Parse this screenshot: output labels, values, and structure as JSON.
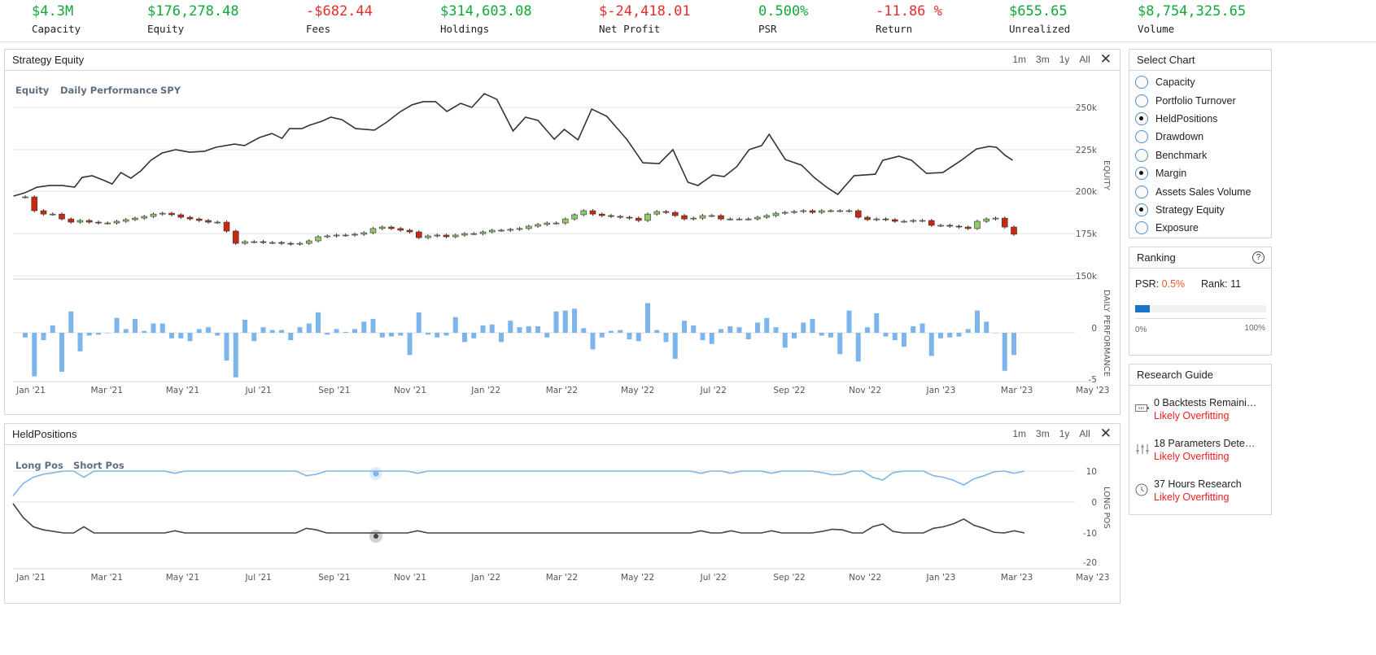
{
  "stats": [
    {
      "value": "$4.3M",
      "label": "Capacity",
      "tone": "pos"
    },
    {
      "value": "$176,278.48",
      "label": "Equity",
      "tone": "pos"
    },
    {
      "value": "-$682.44",
      "label": "Fees",
      "tone": "neg"
    },
    {
      "value": "$314,603.08",
      "label": "Holdings",
      "tone": "pos"
    },
    {
      "value": "$-24,418.01",
      "label": "Net Profit",
      "tone": "neg"
    },
    {
      "value": "0.500%",
      "label": "PSR",
      "tone": "pos"
    },
    {
      "value": "-11.86 %",
      "label": "Return",
      "tone": "neg"
    },
    {
      "value": "$655.65",
      "label": "Unrealized",
      "tone": "pos"
    },
    {
      "value": "$8,754,325.65",
      "label": "Volume",
      "tone": "pos"
    }
  ],
  "colors": {
    "positive": "#12a83a",
    "negative": "#ea2b2b",
    "equity_line": "#333333",
    "perf_bar": "#7cb5ec",
    "candle_up": "#90c86a",
    "candle_down": "#c8290f",
    "long_line": "#7cb5ec",
    "short_line": "#434348",
    "progress": "#1a73c8"
  },
  "range_buttons": [
    "1m",
    "3m",
    "1y",
    "All"
  ],
  "equity_chart": {
    "title": "Strategy Equity",
    "legend": [
      "Equity",
      "Daily Performance",
      "SPY"
    ],
    "y_ticks": [
      "250k",
      "225k",
      "200k",
      "175k",
      "150k"
    ],
    "perf_ticks": [
      "0",
      "-5"
    ],
    "y_label": "EQUITY",
    "perf_label": "DAILY PERFORMANCE",
    "x_ticks": [
      "Jan '21",
      "Mar '21",
      "May '21",
      "Jul '21",
      "Sep '21",
      "Nov '21",
      "Jan '22",
      "Mar '22",
      "May '22",
      "Jul '22",
      "Sep '22",
      "Nov '22",
      "Jan '23",
      "Mar '23",
      "May '23"
    ]
  },
  "held_chart": {
    "title": "HeldPositions",
    "legend": [
      "Long Pos",
      "Short Pos"
    ],
    "y_ticks": [
      "10",
      "0",
      "-10",
      "-20"
    ],
    "y_label": "LONG POS",
    "x_ticks": [
      "Jan '21",
      "Mar '21",
      "May '21",
      "Jul '21",
      "Sep '21",
      "Nov '21",
      "Jan '22",
      "Mar '22",
      "May '22",
      "Jul '22",
      "Sep '22",
      "Nov '22",
      "Jan '23",
      "Mar '23",
      "May '23"
    ]
  },
  "chart_data": [
    {
      "type": "line",
      "name": "Equity",
      "unit": "k USD",
      "x_unit": "days since Jan 1 2021",
      "ylim": [
        150,
        260
      ],
      "points": [
        [
          -14,
          197.3
        ],
        [
          -5,
          199.2
        ],
        [
          5,
          202.6
        ],
        [
          15,
          203.6
        ],
        [
          25,
          203.6
        ],
        [
          35,
          202.6
        ],
        [
          41,
          208.4
        ],
        [
          49,
          209.4
        ],
        [
          59,
          206.5
        ],
        [
          65,
          204.5
        ],
        [
          72,
          211.3
        ],
        [
          80,
          207.9
        ],
        [
          88,
          212.3
        ],
        [
          96,
          218.6
        ],
        [
          105,
          222.9
        ],
        [
          116,
          224.9
        ],
        [
          127,
          223.4
        ],
        [
          139,
          223.9
        ],
        [
          148,
          226.3
        ],
        [
          163,
          228.2
        ],
        [
          171,
          227.3
        ],
        [
          183,
          232.1
        ],
        [
          193,
          234.5
        ],
        [
          201,
          231.6
        ],
        [
          207,
          237.4
        ],
        [
          217,
          237.4
        ],
        [
          223,
          239.4
        ],
        [
          233,
          241.8
        ],
        [
          240,
          244.2
        ],
        [
          249,
          242.7
        ],
        [
          260,
          237.4
        ],
        [
          275,
          236.5
        ],
        [
          285,
          241.3
        ],
        [
          295,
          247.1
        ],
        [
          305,
          251.5
        ],
        [
          314,
          253.4
        ],
        [
          324,
          253.4
        ],
        [
          333,
          247.6
        ],
        [
          344,
          252.4
        ],
        [
          353,
          250
        ],
        [
          363,
          258.2
        ],
        [
          373,
          254.8
        ],
        [
          386,
          236
        ],
        [
          396,
          244.2
        ],
        [
          406,
          242.3
        ],
        [
          419,
          231.1
        ],
        [
          427,
          236.9
        ],
        [
          438,
          230.7
        ],
        [
          449,
          249
        ],
        [
          461,
          244.7
        ],
        [
          477,
          231.1
        ],
        [
          490,
          217.1
        ],
        [
          503,
          216.6
        ],
        [
          514,
          224.9
        ],
        [
          526,
          205.5
        ],
        [
          534,
          203.6
        ],
        [
          546,
          209.9
        ],
        [
          555,
          208.9
        ],
        [
          565,
          214.7
        ],
        [
          575,
          224.9
        ],
        [
          585,
          227.3
        ],
        [
          591,
          234
        ],
        [
          604,
          219
        ],
        [
          617,
          215.7
        ],
        [
          627,
          208.4
        ],
        [
          637,
          202.6
        ],
        [
          646,
          198.3
        ],
        [
          659,
          209.4
        ],
        [
          676,
          210.3
        ],
        [
          682,
          218.6
        ],
        [
          695,
          221
        ],
        [
          705,
          218.6
        ],
        [
          717,
          210.8
        ],
        [
          730,
          211.3
        ],
        [
          744,
          218.1
        ],
        [
          757,
          225.3
        ],
        [
          767,
          226.8
        ],
        [
          773,
          226.3
        ],
        [
          780,
          221.5
        ],
        [
          786,
          218.6
        ]
      ]
    },
    {
      "type": "candlestick",
      "name": "SPY",
      "unit": "k (equity axis)",
      "closes": [
        196.8,
        188.6,
        186.6,
        186.6,
        183.7,
        181.8,
        182.8,
        181.8,
        181.3,
        181.3,
        182.3,
        183.3,
        184.2,
        185.2,
        186.6,
        187.1,
        186.2,
        184.7,
        183.7,
        182.8,
        181.8,
        181.8,
        176.5,
        169.2,
        170.2,
        170.2,
        169.7,
        169.7,
        169.2,
        168.8,
        169.2,
        170.7,
        173.1,
        173.6,
        174.1,
        174.1,
        174.6,
        175.5,
        178,
        178.9,
        178,
        177,
        176,
        172.6,
        173.6,
        174.1,
        173.1,
        174.1,
        175,
        175,
        176,
        177,
        177,
        177.5,
        178,
        179.4,
        180.4,
        181.3,
        181.3,
        183.7,
        186.2,
        188.6,
        186.6,
        185.7,
        185.2,
        184.7,
        184.2,
        182.8,
        186.6,
        188.1,
        187.6,
        185.7,
        183.7,
        184.2,
        185.7,
        185.7,
        183.7,
        183.7,
        183.7,
        183.7,
        184.7,
        185.7,
        187.1,
        187.6,
        188.1,
        188.6,
        187.6,
        188.6,
        188.6,
        188.6,
        188.6,
        184.7,
        183.3,
        183.7,
        183.3,
        182.3,
        182.3,
        182.8,
        182.8,
        179.9,
        179.9,
        179.4,
        178.9,
        178,
        182.3,
        183.7,
        184.2,
        178.9,
        174.6
      ]
    },
    {
      "type": "bar",
      "name": "Daily Performance",
      "ylim": [
        -5,
        5
      ],
      "values": [
        -0.5,
        -4.7,
        -0.8,
        0.8,
        -4.2,
        2.3,
        -2,
        -0.3,
        -0.2,
        0,
        1.6,
        0.4,
        1.5,
        0.2,
        1,
        1,
        -0.6,
        -0.6,
        -0.9,
        0.4,
        0.6,
        -0.3,
        -3,
        -4.8,
        1.4,
        -0.9,
        0.6,
        0.3,
        0.3,
        -0.8,
        0.6,
        1,
        2.2,
        -0.2,
        0.4,
        0.1,
        0.4,
        1.2,
        1.5,
        -0.5,
        -0.4,
        -0.3,
        -2.4,
        2.2,
        -0.2,
        -0.5,
        -0.3,
        1.7,
        -1,
        -0.6,
        0.8,
        0.9,
        -1,
        1.3,
        0.6,
        0.7,
        0.7,
        -0.5,
        2.3,
        2.4,
        2.6,
        0.5,
        -1.8,
        -0.5,
        0.2,
        0.3,
        -0.7,
        -0.9,
        3.2,
        0.3,
        -1,
        -2.8,
        1.3,
        0.8,
        -0.8,
        -1.2,
        0.4,
        0.7,
        0.6,
        -0.7,
        1.1,
        1.6,
        0.6,
        -1.6,
        -0.6,
        1.1,
        1.5,
        -0.3,
        -0.5,
        -2.3,
        2.4,
        -3.1,
        0.6,
        2.1,
        -0.4,
        -0.8,
        -1.5,
        0.7,
        1,
        -2.5,
        -0.6,
        -0.5,
        -0.4,
        0.4,
        2.4,
        1.2,
        0,
        -4.1,
        -2.4
      ]
    },
    {
      "type": "line",
      "name": "Long Pos",
      "ylim": [
        -20,
        10
      ],
      "values": [
        2,
        6,
        8,
        9,
        9.5,
        10,
        10,
        8,
        10,
        10,
        10,
        10,
        10,
        10,
        10,
        10,
        9.3,
        10,
        10,
        10,
        10,
        10,
        10,
        10,
        10,
        10,
        10,
        10,
        10,
        8.5,
        9,
        10,
        10,
        10,
        10,
        10,
        10,
        10,
        10,
        10,
        9.3,
        10,
        10,
        10,
        10,
        10,
        10,
        10,
        10,
        10,
        10,
        10,
        10,
        10,
        10,
        10,
        10,
        10,
        10,
        10,
        10,
        10,
        10,
        10,
        10,
        10,
        10,
        10,
        9.3,
        10,
        10,
        9.3,
        10,
        10,
        10,
        9.3,
        10,
        10,
        10,
        10,
        9.5,
        8.8,
        9,
        10,
        10,
        8,
        7.1,
        9.5,
        10,
        10,
        10,
        8.5,
        8,
        7,
        5.5,
        7.5,
        8.5,
        9.8,
        10,
        9.3,
        10
      ]
    },
    {
      "type": "line",
      "name": "Short Pos",
      "ylim": [
        -20,
        10
      ],
      "values": [
        -0.5,
        -5,
        -8,
        -9,
        -9.5,
        -10,
        -10,
        -8,
        -10,
        -10,
        -10,
        -10,
        -10,
        -10,
        -10,
        -10,
        -9.3,
        -10,
        -10,
        -10,
        -10,
        -10,
        -10,
        -10,
        -10,
        -10,
        -10,
        -10,
        -10,
        -8.5,
        -9,
        -10,
        -10,
        -10,
        -10,
        -10,
        -10,
        -10,
        -10,
        -10,
        -9.3,
        -10,
        -10,
        -10,
        -10,
        -10,
        -10,
        -10,
        -10,
        -10,
        -10,
        -10,
        -10,
        -10,
        -10,
        -10,
        -10,
        -10,
        -10,
        -10,
        -10,
        -10,
        -10,
        -10,
        -10,
        -10,
        -10,
        -10,
        -9.3,
        -10,
        -10,
        -9.3,
        -10,
        -10,
        -10,
        -9.3,
        -10,
        -10,
        -10,
        -10,
        -9.5,
        -8.8,
        -9,
        -10,
        -10,
        -8,
        -7.1,
        -9.5,
        -10,
        -10,
        -10,
        -8.5,
        -8,
        -7,
        -5.5,
        -7.5,
        -8.5,
        -9.8,
        -10,
        -9.3,
        -10
      ]
    }
  ],
  "select_chart": {
    "title": "Select Chart",
    "items": [
      {
        "label": "Capacity",
        "checked": false
      },
      {
        "label": "Portfolio Turnover",
        "checked": false
      },
      {
        "label": "HeldPositions",
        "checked": true
      },
      {
        "label": "Drawdown",
        "checked": false
      },
      {
        "label": "Benchmark",
        "checked": false
      },
      {
        "label": "Margin",
        "checked": true
      },
      {
        "label": "Assets Sales Volume",
        "checked": false
      },
      {
        "label": "Strategy Equity",
        "checked": true
      },
      {
        "label": "Exposure",
        "checked": false
      }
    ]
  },
  "ranking": {
    "title": "Ranking",
    "help": "?",
    "psr_label": "PSR:",
    "psr_value": "0.5%",
    "rank_label": "Rank: 11",
    "progress_fraction": 0.11,
    "min_label": "0%",
    "max_label": "100%"
  },
  "research_guide": {
    "title": "Research Guide",
    "items": [
      {
        "icon": "battery-icon",
        "title": "0 Backtests Remaini…",
        "status": "Likely Overfitting"
      },
      {
        "icon": "sliders-icon",
        "title": "18 Parameters Dete…",
        "status": "Likely Overfitting"
      },
      {
        "icon": "clock-icon",
        "title": "37 Hours Research",
        "status": "Likely Overfitting"
      }
    ]
  }
}
